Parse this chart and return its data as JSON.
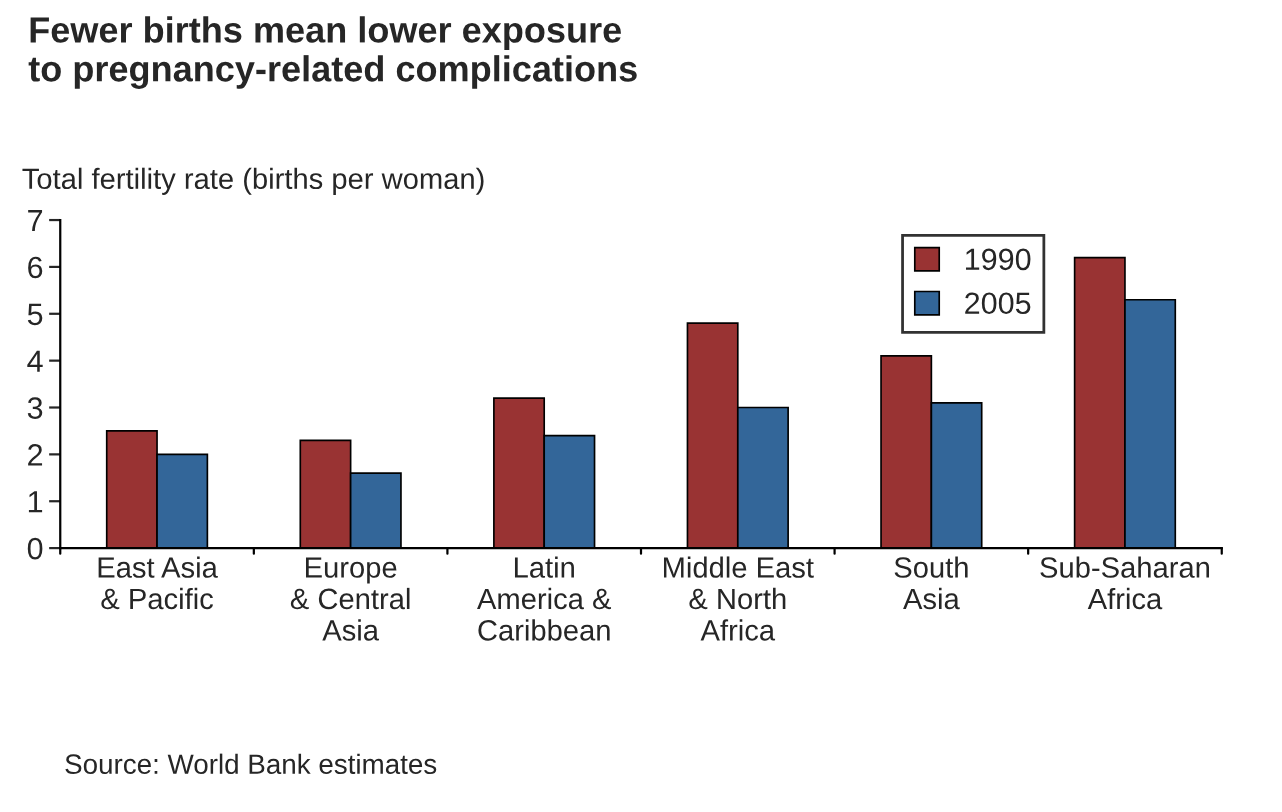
{
  "chart_data": {
    "type": "bar",
    "title": "Fewer births mean lower exposure\nto pregnancy-related complications",
    "ylabel": "Total fertility rate (births per woman)",
    "categories": [
      "East Asia\n& Pacific",
      "Europe\n& Central\nAsia",
      "Latin\nAmerica &\nCaribbean",
      "Middle East\n& North\nAfrica",
      "South\nAsia",
      "Sub-Saharan\nAfrica"
    ],
    "series": [
      {
        "name": "1990",
        "color": "#993333",
        "values": [
          2.5,
          2.3,
          3.2,
          4.8,
          4.1,
          6.2
        ]
      },
      {
        "name": "2005",
        "color": "#336699",
        "values": [
          2.0,
          1.6,
          2.4,
          3.0,
          3.1,
          5.3
        ]
      }
    ],
    "ylim": [
      0,
      7
    ],
    "yticks": [
      0,
      1,
      2,
      3,
      4,
      5,
      6,
      7
    ],
    "grid": false,
    "legend": "top right",
    "annotations": [
      "Source: World Bank estimates"
    ]
  }
}
